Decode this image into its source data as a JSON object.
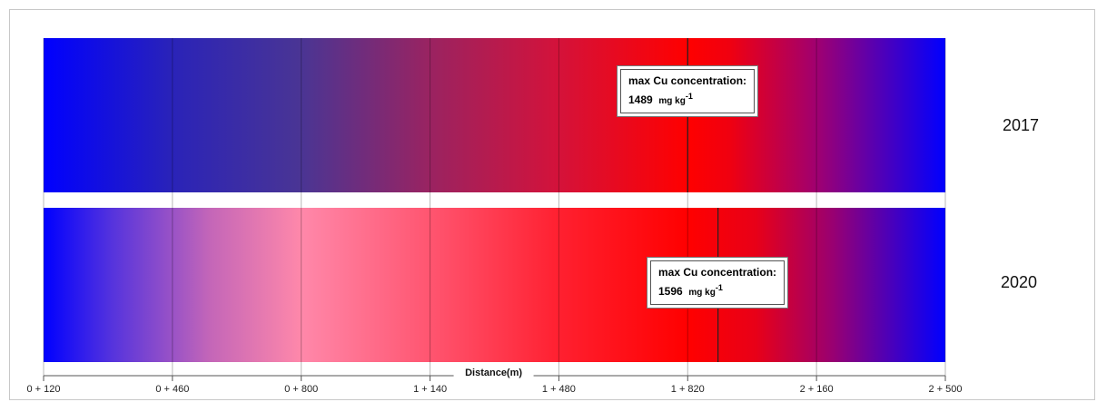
{
  "chart_data": {
    "type": "heatmap",
    "xlabel": "Distance(m)",
    "x_ticks": [
      "0 + 120",
      "0 + 460",
      "0 + 800",
      "1 + 140",
      "1 + 480",
      "1 + 820",
      "2 + 160",
      "2 + 500"
    ],
    "x_tick_values_m": [
      120,
      460,
      800,
      1140,
      1480,
      1820,
      2160,
      2500
    ],
    "xlim_m": [
      120,
      2500
    ],
    "colors": {
      "low": "#0000ff",
      "high": "#ff0000"
    },
    "strips": [
      {
        "year": "2017",
        "max_label_line1": "max Cu concentration:",
        "max_value": "1489",
        "max_unit_prefix": "mg kg",
        "max_unit_exp": "-1",
        "max_position_m": 1820,
        "gradient": [
          {
            "m": 120,
            "color": "#0000ff"
          },
          {
            "m": 460,
            "color": "#2a23b8"
          },
          {
            "m": 800,
            "color": "#4a3594"
          },
          {
            "m": 1140,
            "color": "#9a2361"
          },
          {
            "m": 1480,
            "color": "#d4123a"
          },
          {
            "m": 1820,
            "color": "#ff0000"
          },
          {
            "m": 1930,
            "color": "#f00010"
          },
          {
            "m": 2160,
            "color": "#a00070"
          },
          {
            "m": 2500,
            "color": "#0000ff"
          }
        ]
      },
      {
        "year": "2020",
        "max_label_line1": "max Cu concentration:",
        "max_value": "1596",
        "max_unit_prefix": "mg kg",
        "max_unit_exp": "-1",
        "max_position_m": 1900,
        "gradient": [
          {
            "m": 120,
            "color": "#0000ff"
          },
          {
            "m": 300,
            "color": "#5533dd"
          },
          {
            "m": 560,
            "color": "#c466b8"
          },
          {
            "m": 800,
            "color": "#ff88aa"
          },
          {
            "m": 1140,
            "color": "#ff5570"
          },
          {
            "m": 1480,
            "color": "#ff2030"
          },
          {
            "m": 1820,
            "color": "#ff0000"
          },
          {
            "m": 2000,
            "color": "#e80018"
          },
          {
            "m": 2200,
            "color": "#9a0070"
          },
          {
            "m": 2500,
            "color": "#0000ff"
          }
        ]
      }
    ]
  }
}
